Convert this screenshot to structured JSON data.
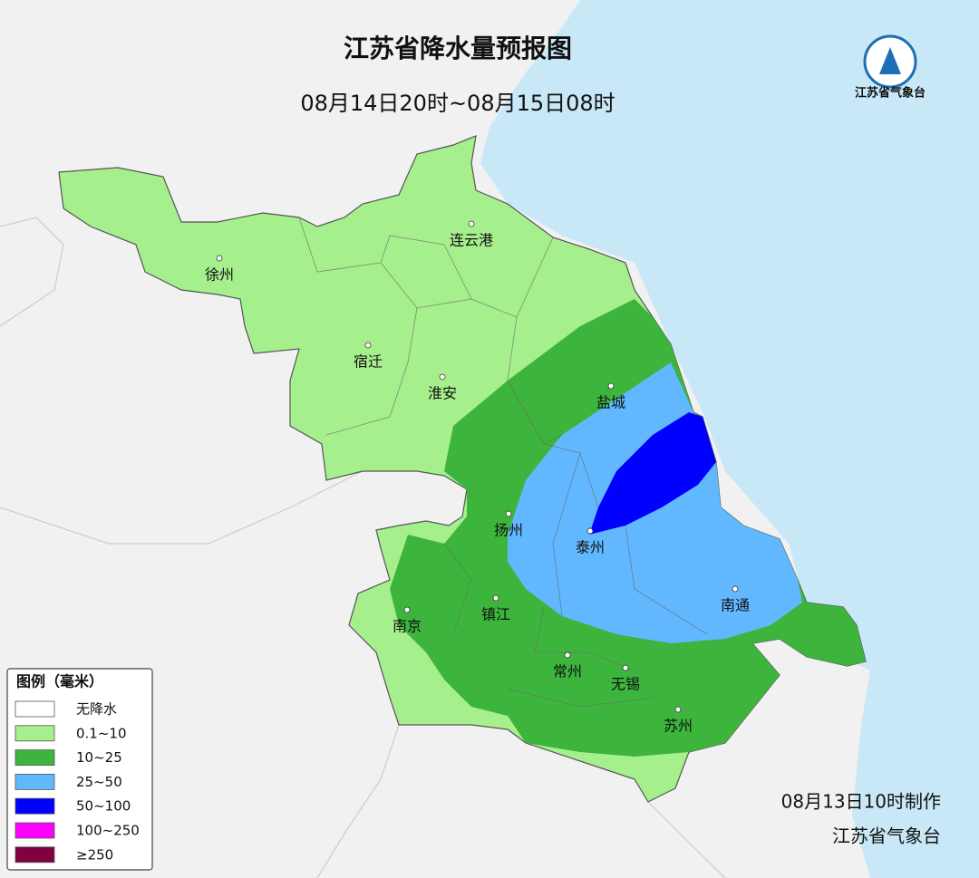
{
  "map": {
    "title": "江苏省降水量预报图",
    "subtitle": "08月14日20时~08月15日08时",
    "logo_text": "江苏省气象台",
    "cities": [
      {
        "name": "连云港",
        "dot": [
          520,
          247
        ]
      },
      {
        "name": "徐州",
        "dot": [
          242,
          285
        ]
      },
      {
        "name": "宿迁",
        "dot": [
          406,
          381
        ]
      },
      {
        "name": "淮安",
        "dot": [
          488,
          416
        ]
      },
      {
        "name": "盐城",
        "dot": [
          674,
          426
        ]
      },
      {
        "name": "扬州",
        "dot": [
          561,
          567
        ]
      },
      {
        "name": "泰州",
        "dot": [
          651,
          586
        ]
      },
      {
        "name": "南通",
        "dot": [
          811,
          650
        ]
      },
      {
        "name": "南京",
        "dot": [
          449,
          673
        ]
      },
      {
        "name": "镇江",
        "dot": [
          547,
          660
        ]
      },
      {
        "name": "常州",
        "dot": [
          626,
          723
        ]
      },
      {
        "name": "无锡",
        "dot": [
          690,
          737
        ]
      },
      {
        "name": "苏州",
        "dot": [
          748,
          783
        ]
      }
    ],
    "legend": {
      "title": "图例（毫米）",
      "items": [
        {
          "label": "无降水",
          "color": "#ffffff"
        },
        {
          "label": "0.1~10",
          "color": "#a6ef8d"
        },
        {
          "label": "10~25",
          "color": "#3db53d"
        },
        {
          "label": "25~50",
          "color": "#62b8ff"
        },
        {
          "label": "50~100",
          "color": "#0000fe"
        },
        {
          "label": "100~250",
          "color": "#fe00fe"
        },
        {
          "label": "≥250",
          "color": "#810040"
        }
      ]
    },
    "footer": {
      "made": "08月13日10时制作",
      "org": "江苏省气象台"
    }
  }
}
